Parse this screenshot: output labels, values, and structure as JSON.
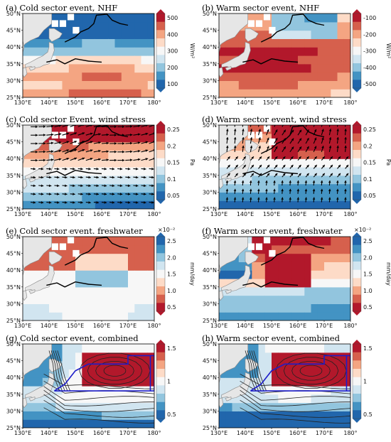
{
  "figure": {
    "lon_ticks": [
      "130°E",
      "140°E",
      "150°E",
      "160°E",
      "170°E",
      "180°"
    ],
    "lat_ticks": [
      "50°N",
      "45°N",
      "40°N",
      "35°N",
      "30°N",
      "25°N"
    ],
    "panels": [
      {
        "id": "a",
        "title": "(a) Cold sector event, NHF",
        "cbar": {
          "ticks": [
            "500",
            "400",
            "300",
            "200",
            "100"
          ],
          "unit": "W/m²",
          "scale": ""
        },
        "colormap": "RdBu",
        "vectors": false,
        "box": false,
        "contours": false
      },
      {
        "id": "b",
        "title": "(b) Warm sector event, NHF",
        "cbar": {
          "ticks": [
            "-100",
            "-200",
            "-300",
            "-400",
            "-500"
          ],
          "unit": "W/m²",
          "scale": ""
        },
        "colormap": "RdBu",
        "vectors": false,
        "box": false,
        "contours": false
      },
      {
        "id": "c",
        "title": "(c) Cold sector Event, wind stress",
        "cbar": {
          "ticks": [
            "0.25",
            "0.2",
            "0.15",
            "0.1",
            "0.05"
          ],
          "unit": "Pa",
          "scale": ""
        },
        "colormap": "RdBu",
        "vectors": true,
        "box": false,
        "contours": false
      },
      {
        "id": "d",
        "title": "(d) Warm sector event, wind stress",
        "cbar": {
          "ticks": [
            "0.25",
            "0.2",
            "0.15",
            "0.1",
            "0.05"
          ],
          "unit": "Pa",
          "scale": ""
        },
        "colormap": "RdBu",
        "vectors": true,
        "box": false,
        "contours": false
      },
      {
        "id": "e",
        "title": "(e) Cold sector event. freshwater",
        "cbar": {
          "ticks": [
            "2.5",
            "2.0",
            "1.5",
            "1.0",
            "0.5"
          ],
          "unit": "mm/day",
          "scale": "×10⁻²"
        },
        "colormap": "BuRd",
        "vectors": false,
        "box": false,
        "contours": false
      },
      {
        "id": "f",
        "title": "(f) Warm sector event, freshwater",
        "cbar": {
          "ticks": [
            "2.5",
            "2.0",
            "1.5",
            "1.0",
            "0.5"
          ],
          "unit": "mm/day",
          "scale": "×10⁻²"
        },
        "colormap": "BuRd",
        "vectors": false,
        "box": false,
        "contours": false
      },
      {
        "id": "g",
        "title": "(g) Cold sector event, combined",
        "cbar": {
          "ticks": [
            "1.5",
            "1",
            "0.5"
          ],
          "unit": "",
          "scale": ""
        },
        "colormap": "RdBu",
        "vectors": false,
        "box": true,
        "contours": true
      },
      {
        "id": "h",
        "title": "(h) Warm sector event, combined",
        "cbar": {
          "ticks": [
            "1.5",
            "1",
            "0.5"
          ],
          "unit": "",
          "scale": ""
        },
        "colormap": "RdBu",
        "vectors": false,
        "box": true,
        "contours": true
      }
    ]
  }
}
